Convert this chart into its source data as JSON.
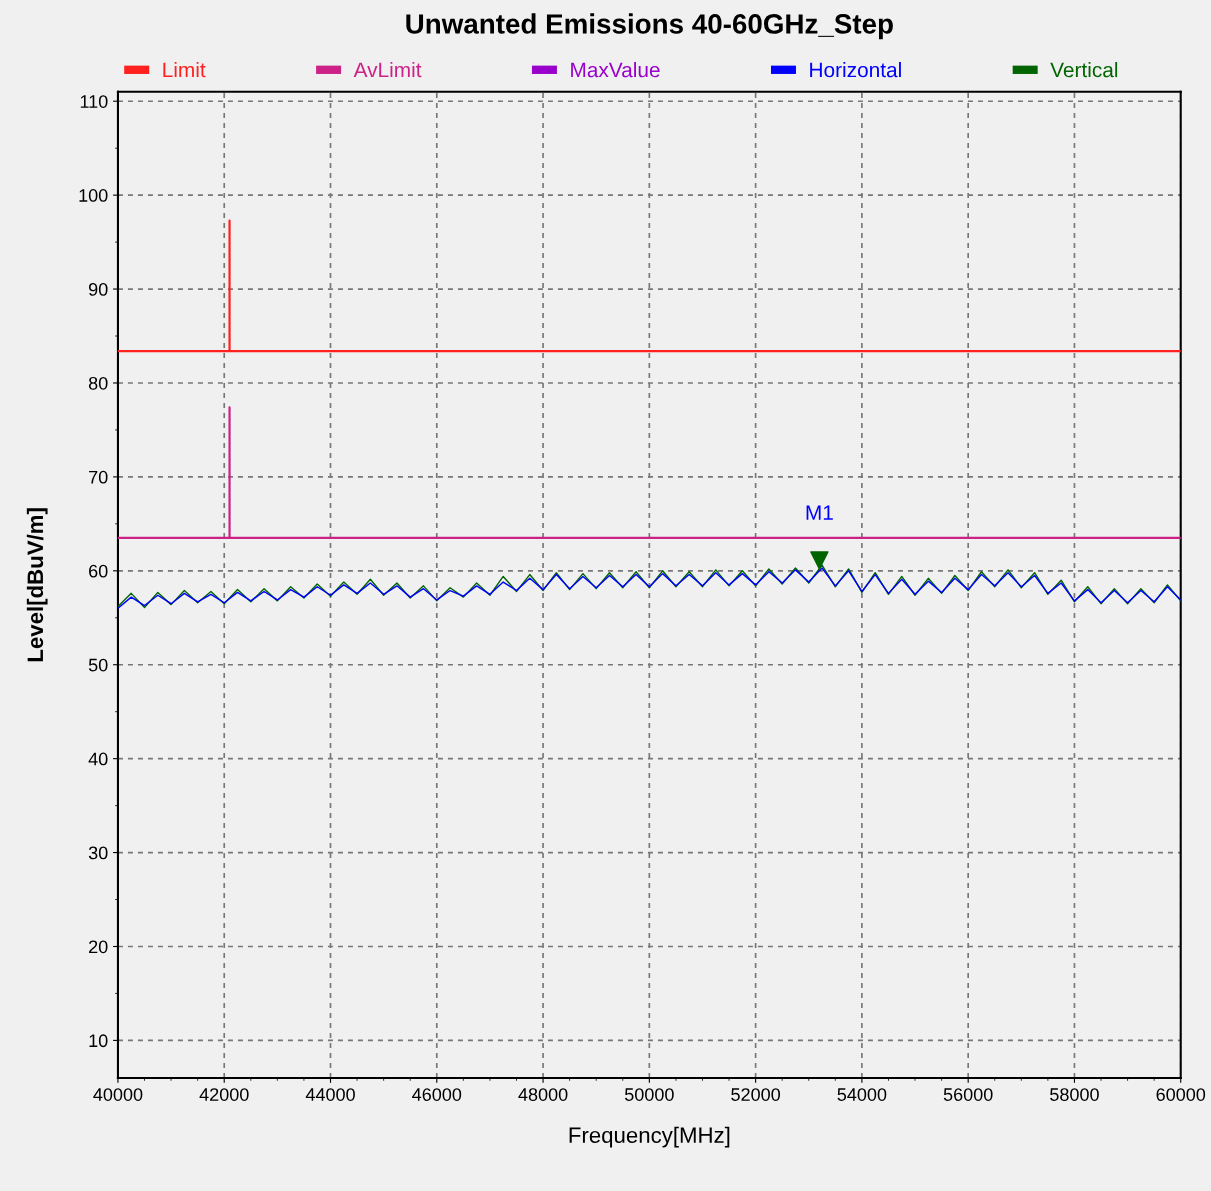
{
  "chart_data": {
    "type": "line",
    "title": "Unwanted Emissions 40-60GHz_Step",
    "xlabel": "Frequency[MHz]",
    "ylabel": "Level[dBuV/m]",
    "xlim": [
      40000,
      60000
    ],
    "xticks": [
      40000,
      42000,
      44000,
      46000,
      48000,
      50000,
      52000,
      54000,
      56000,
      58000,
      60000
    ],
    "ylim": [
      6,
      111
    ],
    "yticks": [
      10,
      20,
      30,
      40,
      50,
      60,
      70,
      80,
      90,
      100,
      110
    ],
    "grid": true,
    "legend": "top",
    "line_style": "solid",
    "marker": "none",
    "annotations": [
      {
        "text": "M1",
        "x": 53200,
        "y": 60.1
      }
    ],
    "series": [
      {
        "name": "Limit",
        "color": "#ff2020",
        "x": [
          40000,
          42100,
          42100,
          42100,
          60000
        ],
        "values": [
          83.4,
          83.4,
          97.3,
          83.4,
          83.4
        ]
      },
      {
        "name": "AvLimit",
        "color": "#cc2288",
        "x": [
          40000,
          42100,
          42100,
          42100,
          60000
        ],
        "values": [
          63.5,
          63.5,
          77.4,
          63.5,
          63.5
        ]
      },
      {
        "name": "MaxValue",
        "color": "#9900cc"
      },
      {
        "name": "Horizontal",
        "color": "#0000ff",
        "x": [
          40000,
          40250,
          40500,
          40750,
          41000,
          41250,
          41500,
          41750,
          42000,
          42250,
          42500,
          42750,
          43000,
          43250,
          43500,
          43750,
          44000,
          44250,
          44500,
          44750,
          45000,
          45250,
          45500,
          45750,
          46000,
          46250,
          46500,
          46750,
          47000,
          47250,
          47500,
          47750,
          48000,
          48250,
          48500,
          48750,
          49000,
          49250,
          49500,
          49750,
          50000,
          50250,
          50500,
          50750,
          51000,
          51250,
          51500,
          51750,
          52000,
          52250,
          52500,
          52750,
          53000,
          53250,
          53500,
          53750,
          54000,
          54250,
          54500,
          54750,
          55000,
          55250,
          55500,
          55750,
          56000,
          56250,
          56500,
          56750,
          57000,
          57250,
          57500,
          57750,
          58000,
          58250,
          58500,
          58750,
          59000,
          59250,
          59500,
          59750,
          60000
        ],
        "values": [
          56.0,
          57.2,
          56.3,
          57.4,
          56.5,
          57.6,
          56.7,
          57.5,
          56.6,
          57.7,
          56.8,
          57.8,
          56.9,
          58.0,
          57.2,
          58.3,
          57.4,
          58.5,
          57.6,
          58.7,
          57.5,
          58.4,
          57.2,
          58.1,
          56.9,
          57.9,
          57.3,
          58.4,
          57.5,
          58.8,
          57.9,
          59.2,
          58.0,
          59.6,
          58.1,
          59.4,
          58.2,
          59.5,
          58.3,
          59.6,
          58.3,
          59.7,
          58.4,
          59.6,
          58.4,
          59.8,
          58.5,
          59.7,
          58.5,
          59.9,
          58.7,
          60.1,
          58.8,
          60.3,
          58.4,
          60.0,
          57.8,
          59.6,
          57.6,
          59.1,
          57.5,
          58.9,
          57.7,
          59.2,
          58.0,
          59.6,
          58.4,
          59.8,
          58.3,
          59.5,
          57.6,
          58.7,
          56.8,
          58.0,
          56.6,
          57.9,
          56.6,
          57.9,
          56.7,
          58.3,
          56.9
        ]
      },
      {
        "name": "Vertical",
        "color": "#006400",
        "x": [
          40000,
          40250,
          40500,
          40750,
          41000,
          41250,
          41500,
          41750,
          42000,
          42250,
          42500,
          42750,
          43000,
          43250,
          43500,
          43750,
          44000,
          44250,
          44500,
          44750,
          45000,
          45250,
          45500,
          45750,
          46000,
          46250,
          46500,
          46750,
          47000,
          47250,
          47500,
          47750,
          48000,
          48250,
          48500,
          48750,
          49000,
          49250,
          49500,
          49750,
          50000,
          50250,
          50500,
          50750,
          51000,
          51250,
          51500,
          51750,
          52000,
          52250,
          52500,
          52750,
          53000,
          53250,
          53500,
          53750,
          54000,
          54250,
          54500,
          54750,
          55000,
          55250,
          55500,
          55750,
          56000,
          56250,
          56500,
          56750,
          57000,
          57250,
          57500,
          57750,
          58000,
          58250,
          58500,
          58750,
          59000,
          59250,
          59500,
          59750,
          60000
        ],
        "values": [
          56.2,
          57.6,
          56.1,
          57.7,
          56.4,
          57.9,
          56.6,
          57.8,
          56.5,
          58.0,
          56.7,
          58.1,
          56.8,
          58.3,
          57.1,
          58.6,
          57.3,
          58.8,
          57.5,
          59.1,
          57.4,
          58.7,
          57.1,
          58.4,
          56.8,
          58.2,
          57.2,
          58.7,
          57.4,
          59.4,
          57.8,
          59.6,
          57.9,
          59.8,
          58.0,
          59.7,
          58.1,
          59.8,
          58.2,
          59.9,
          58.2,
          60.0,
          58.3,
          59.9,
          58.3,
          60.1,
          58.4,
          60.0,
          58.4,
          60.2,
          58.6,
          60.3,
          58.7,
          60.6,
          58.3,
          60.2,
          57.7,
          59.8,
          57.5,
          59.4,
          57.4,
          59.2,
          57.6,
          59.5,
          57.9,
          59.9,
          58.3,
          60.1,
          58.2,
          59.8,
          57.5,
          59.0,
          56.7,
          58.3,
          56.5,
          58.1,
          56.5,
          58.1,
          56.6,
          58.5,
          56.8
        ]
      },
      {
        "type": "scatter",
        "marker": "triangle",
        "color": "#006400",
        "x": [
          53200
        ],
        "values": [
          61.1
        ]
      }
    ]
  }
}
